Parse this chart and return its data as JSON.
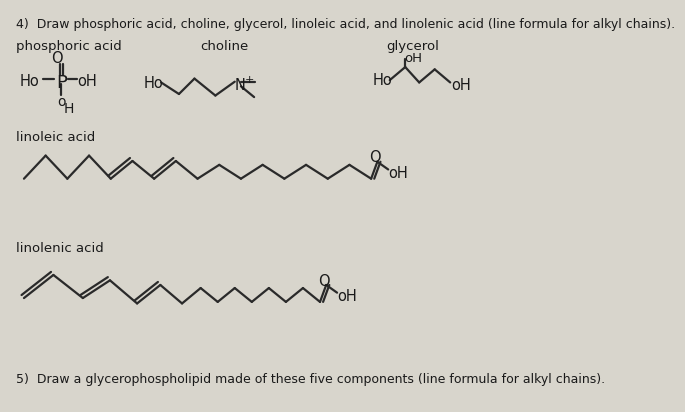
{
  "background_color": "#d8d5cc",
  "text_color": "#1a1a1a",
  "line_color": "#2a2a2a",
  "title_text": "4)  Draw phosphoric acid, choline, glycerol, linoleic acid, and linolenic acid (line formula for alkyl chains).",
  "footer_text": "5)  Draw a glycerophospholipid made of these five components (line formula for alkyl chains).",
  "phosphoric_acid_label": "phosphoric acid",
  "choline_label": "choline",
  "glycerol_label": "glycerol",
  "linoleic_label": "linoleic acid",
  "linolenic_label": "linolenic acid",
  "font_size_title": 9.0,
  "font_size_label": 9.5,
  "font_size_chem": 10.5
}
